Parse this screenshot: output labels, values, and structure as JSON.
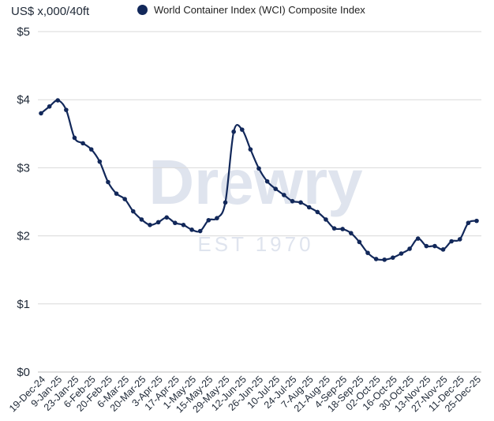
{
  "chart_data": {
    "type": "line",
    "ylabel": "US$ x,000/40ft",
    "ylim": [
      0,
      5
    ],
    "y_ticks": [
      "$0",
      "$1",
      "$2",
      "$3",
      "$4",
      "$5"
    ],
    "legend_position": "top",
    "grid": true,
    "watermark": {
      "text": "Drewry",
      "subtext": "EST 1970"
    },
    "x_tick_labels": [
      "19-Dec-24",
      "9-Jan-25",
      "23-Jan-25",
      "6-Feb-25",
      "20-Feb-25",
      "6-Mar-25",
      "20-Mar-25",
      "3-Apr-25",
      "17-Apr-25",
      "1-May-25",
      "15-May-25",
      "29-May-25",
      "12-Jun-25",
      "26-Jun-25",
      "10-Jul-25",
      "24-Jul-25",
      "7-Aug-25",
      "21-Aug-25",
      "4-Sep-25",
      "18-Sep-25",
      "02-Oct-25",
      "16-Oct-25",
      "30-Oct-25",
      "13-Nov-25",
      "27-Nov-25",
      "11-Dec-25",
      "25-Dec-25"
    ],
    "series": [
      {
        "name": "World Container Index (WCI) Composite Index",
        "color": "#12285a",
        "values": [
          3.8,
          3.9,
          3.99,
          3.85,
          3.44,
          3.36,
          3.27,
          3.09,
          2.79,
          2.62,
          2.54,
          2.36,
          2.24,
          2.16,
          2.2,
          2.27,
          2.19,
          2.16,
          2.09,
          2.07,
          2.23,
          2.26,
          2.49,
          3.53,
          3.56,
          3.27,
          2.99,
          2.8,
          2.69,
          2.6,
          2.51,
          2.49,
          2.42,
          2.35,
          2.24,
          2.11,
          2.1,
          2.04,
          1.91,
          1.75,
          1.66,
          1.65,
          1.68,
          1.74,
          1.81,
          1.96,
          1.85,
          1.85,
          1.8,
          1.92,
          1.95,
          2.19,
          2.22
        ]
      }
    ]
  }
}
